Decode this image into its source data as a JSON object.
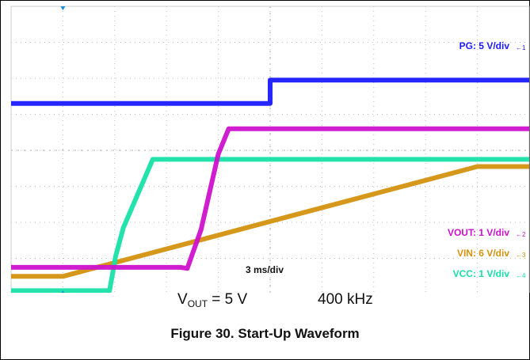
{
  "figure": {
    "caption": "Figure 30. Start-Up Waveform",
    "conditions": {
      "vout_label": "V",
      "vout_sub": "OUT",
      "vout_value": " = 5 V",
      "frequency": "400 kHz"
    }
  },
  "chart_data": {
    "type": "line",
    "title": "",
    "xlabel": "",
    "ylabel": "",
    "timebase": "3 ms/div",
    "x_unit": "ms",
    "x_range": [
      -3,
      27
    ],
    "grid": true,
    "legend_placement": "right",
    "series": [
      {
        "name": "PG: 5 V/div",
        "channel": "1",
        "color": "#1a1aff",
        "x": [
          -3,
          12,
          12,
          27
        ],
        "y": [
          5.3,
          5.3,
          5.95,
          5.95
        ]
      },
      {
        "name": "VOUT: 1 V/div",
        "channel": "2",
        "color": "#cc11cc",
        "x": [
          -3,
          6.8,
          7.2,
          8.0,
          9.0,
          9.6,
          12,
          27
        ],
        "y": [
          0.75,
          0.75,
          0.72,
          1.8,
          3.9,
          4.6,
          4.6,
          4.6
        ]
      },
      {
        "name": "VIN: 6 V/div",
        "channel": "3",
        "color": "#d4920f",
        "x": [
          -3,
          0.0,
          24.0,
          27
        ],
        "y": [
          0.5,
          0.5,
          3.55,
          3.55
        ]
      },
      {
        "name": "VCC: 1 V/div",
        "channel": "4",
        "color": "#18e0a8",
        "x": [
          -3,
          2.7,
          3.05,
          3.5,
          5.2,
          27
        ],
        "y": [
          0.1,
          0.1,
          1.05,
          1.85,
          3.75,
          3.75
        ]
      }
    ],
    "markers": {
      "trigger_top_color": "#1a8fe0",
      "trigger_bottom_color": "#1a8fe0"
    }
  }
}
